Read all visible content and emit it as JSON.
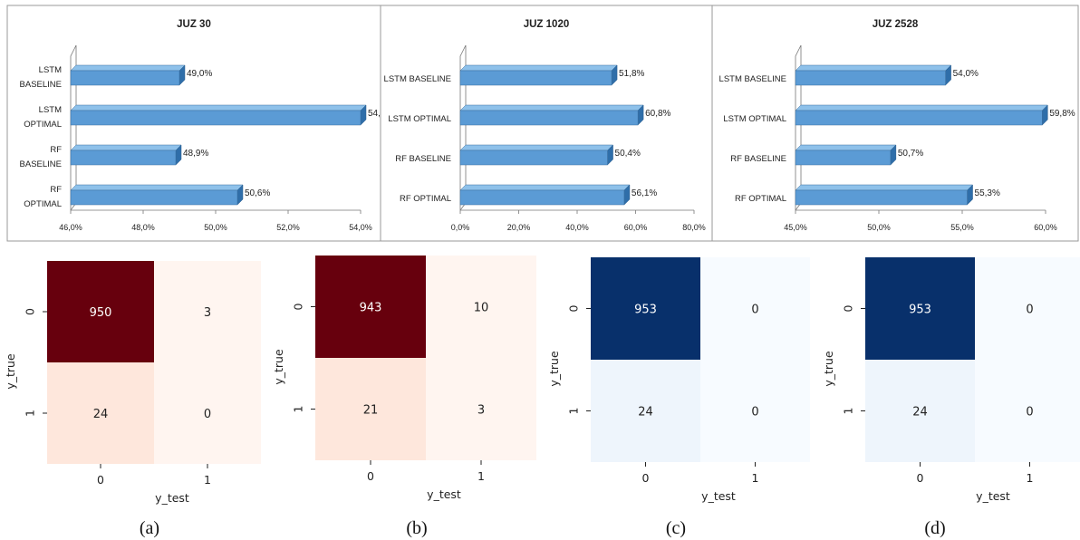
{
  "colors": {
    "bar_front": "#5b9bd5",
    "bar_top": "#8ec1ea",
    "bar_side": "#2f6ea9",
    "reds": [
      "#fff5f0",
      "#fee7dc",
      "#67000d"
    ],
    "blues": [
      "#f7fbff",
      "#eef5fc",
      "#08306b"
    ]
  },
  "chart_data": [
    {
      "type": "bar",
      "orientation": "horizontal",
      "title": "JUZ 30",
      "categories": [
        [
          "LSTM",
          "BASELINE"
        ],
        [
          "LSTM",
          "OPTIMAL"
        ],
        [
          "RF",
          "BASELINE"
        ],
        [
          "RF",
          "OPTIMAL"
        ]
      ],
      "values": [
        49.0,
        54.0,
        48.9,
        50.6
      ],
      "value_labels": [
        "49,0%",
        "54,",
        "48,9%",
        "50,6%"
      ],
      "xlim": [
        46,
        54
      ],
      "xticks": [
        "46,0%",
        "48,0%",
        "50,0%",
        "52,0%",
        "54,0%"
      ]
    },
    {
      "type": "bar",
      "orientation": "horizontal",
      "title": "JUZ 1020",
      "categories": [
        [
          "LSTM BASELINE"
        ],
        [
          "LSTM OPTIMAL"
        ],
        [
          "RF BASELINE"
        ],
        [
          "RF OPTIMAL"
        ]
      ],
      "values": [
        51.8,
        60.8,
        50.4,
        56.1
      ],
      "value_labels": [
        "51,8%",
        "60,8%",
        "50,4%",
        "56,1%"
      ],
      "xlim": [
        0,
        80
      ],
      "xticks": [
        "0,0%",
        "20,0%",
        "40,0%",
        "60,0%",
        "80,0%"
      ]
    },
    {
      "type": "bar",
      "orientation": "horizontal",
      "title": "JUZ 2528",
      "categories": [
        [
          "LSTM BASELINE"
        ],
        [
          "LSTM OPTIMAL"
        ],
        [
          "RF BASELINE"
        ],
        [
          "RF OPTIMAL"
        ]
      ],
      "values": [
        54.0,
        59.8,
        50.7,
        55.3
      ],
      "value_labels": [
        "54,0%",
        "59,8%",
        "50,7%",
        "55,3%"
      ],
      "xlim": [
        45,
        60
      ],
      "xticks": [
        "45,0%",
        "50,0%",
        "55,0%",
        "60,0%"
      ]
    },
    {
      "type": "heatmap",
      "caption": "(a)",
      "palette": "reds",
      "matrix": [
        [
          950,
          3
        ],
        [
          24,
          0
        ]
      ],
      "xlabel": "y_test",
      "ylabel": "y_true",
      "xticks": [
        "0",
        "1"
      ],
      "yticks": [
        "0",
        "1"
      ]
    },
    {
      "type": "heatmap",
      "caption": "(b)",
      "palette": "reds",
      "matrix": [
        [
          943,
          10
        ],
        [
          21,
          3
        ]
      ],
      "xlabel": "y_test",
      "ylabel": "y_true",
      "xticks": [
        "0",
        "1"
      ],
      "yticks": [
        "0",
        "1"
      ]
    },
    {
      "type": "heatmap",
      "caption": "(c)",
      "palette": "blues",
      "matrix": [
        [
          953,
          0
        ],
        [
          24,
          0
        ]
      ],
      "xlabel": "y_test",
      "ylabel": "y_true",
      "xticks": [
        "0",
        "1"
      ],
      "yticks": [
        "0",
        "1"
      ]
    },
    {
      "type": "heatmap",
      "caption": "(d)",
      "palette": "blues",
      "matrix": [
        [
          953,
          0
        ],
        [
          24,
          0
        ]
      ],
      "xlabel": "y_test",
      "ylabel": "y_true",
      "xticks": [
        "0",
        "1"
      ],
      "yticks": [
        "0",
        "1"
      ]
    }
  ]
}
